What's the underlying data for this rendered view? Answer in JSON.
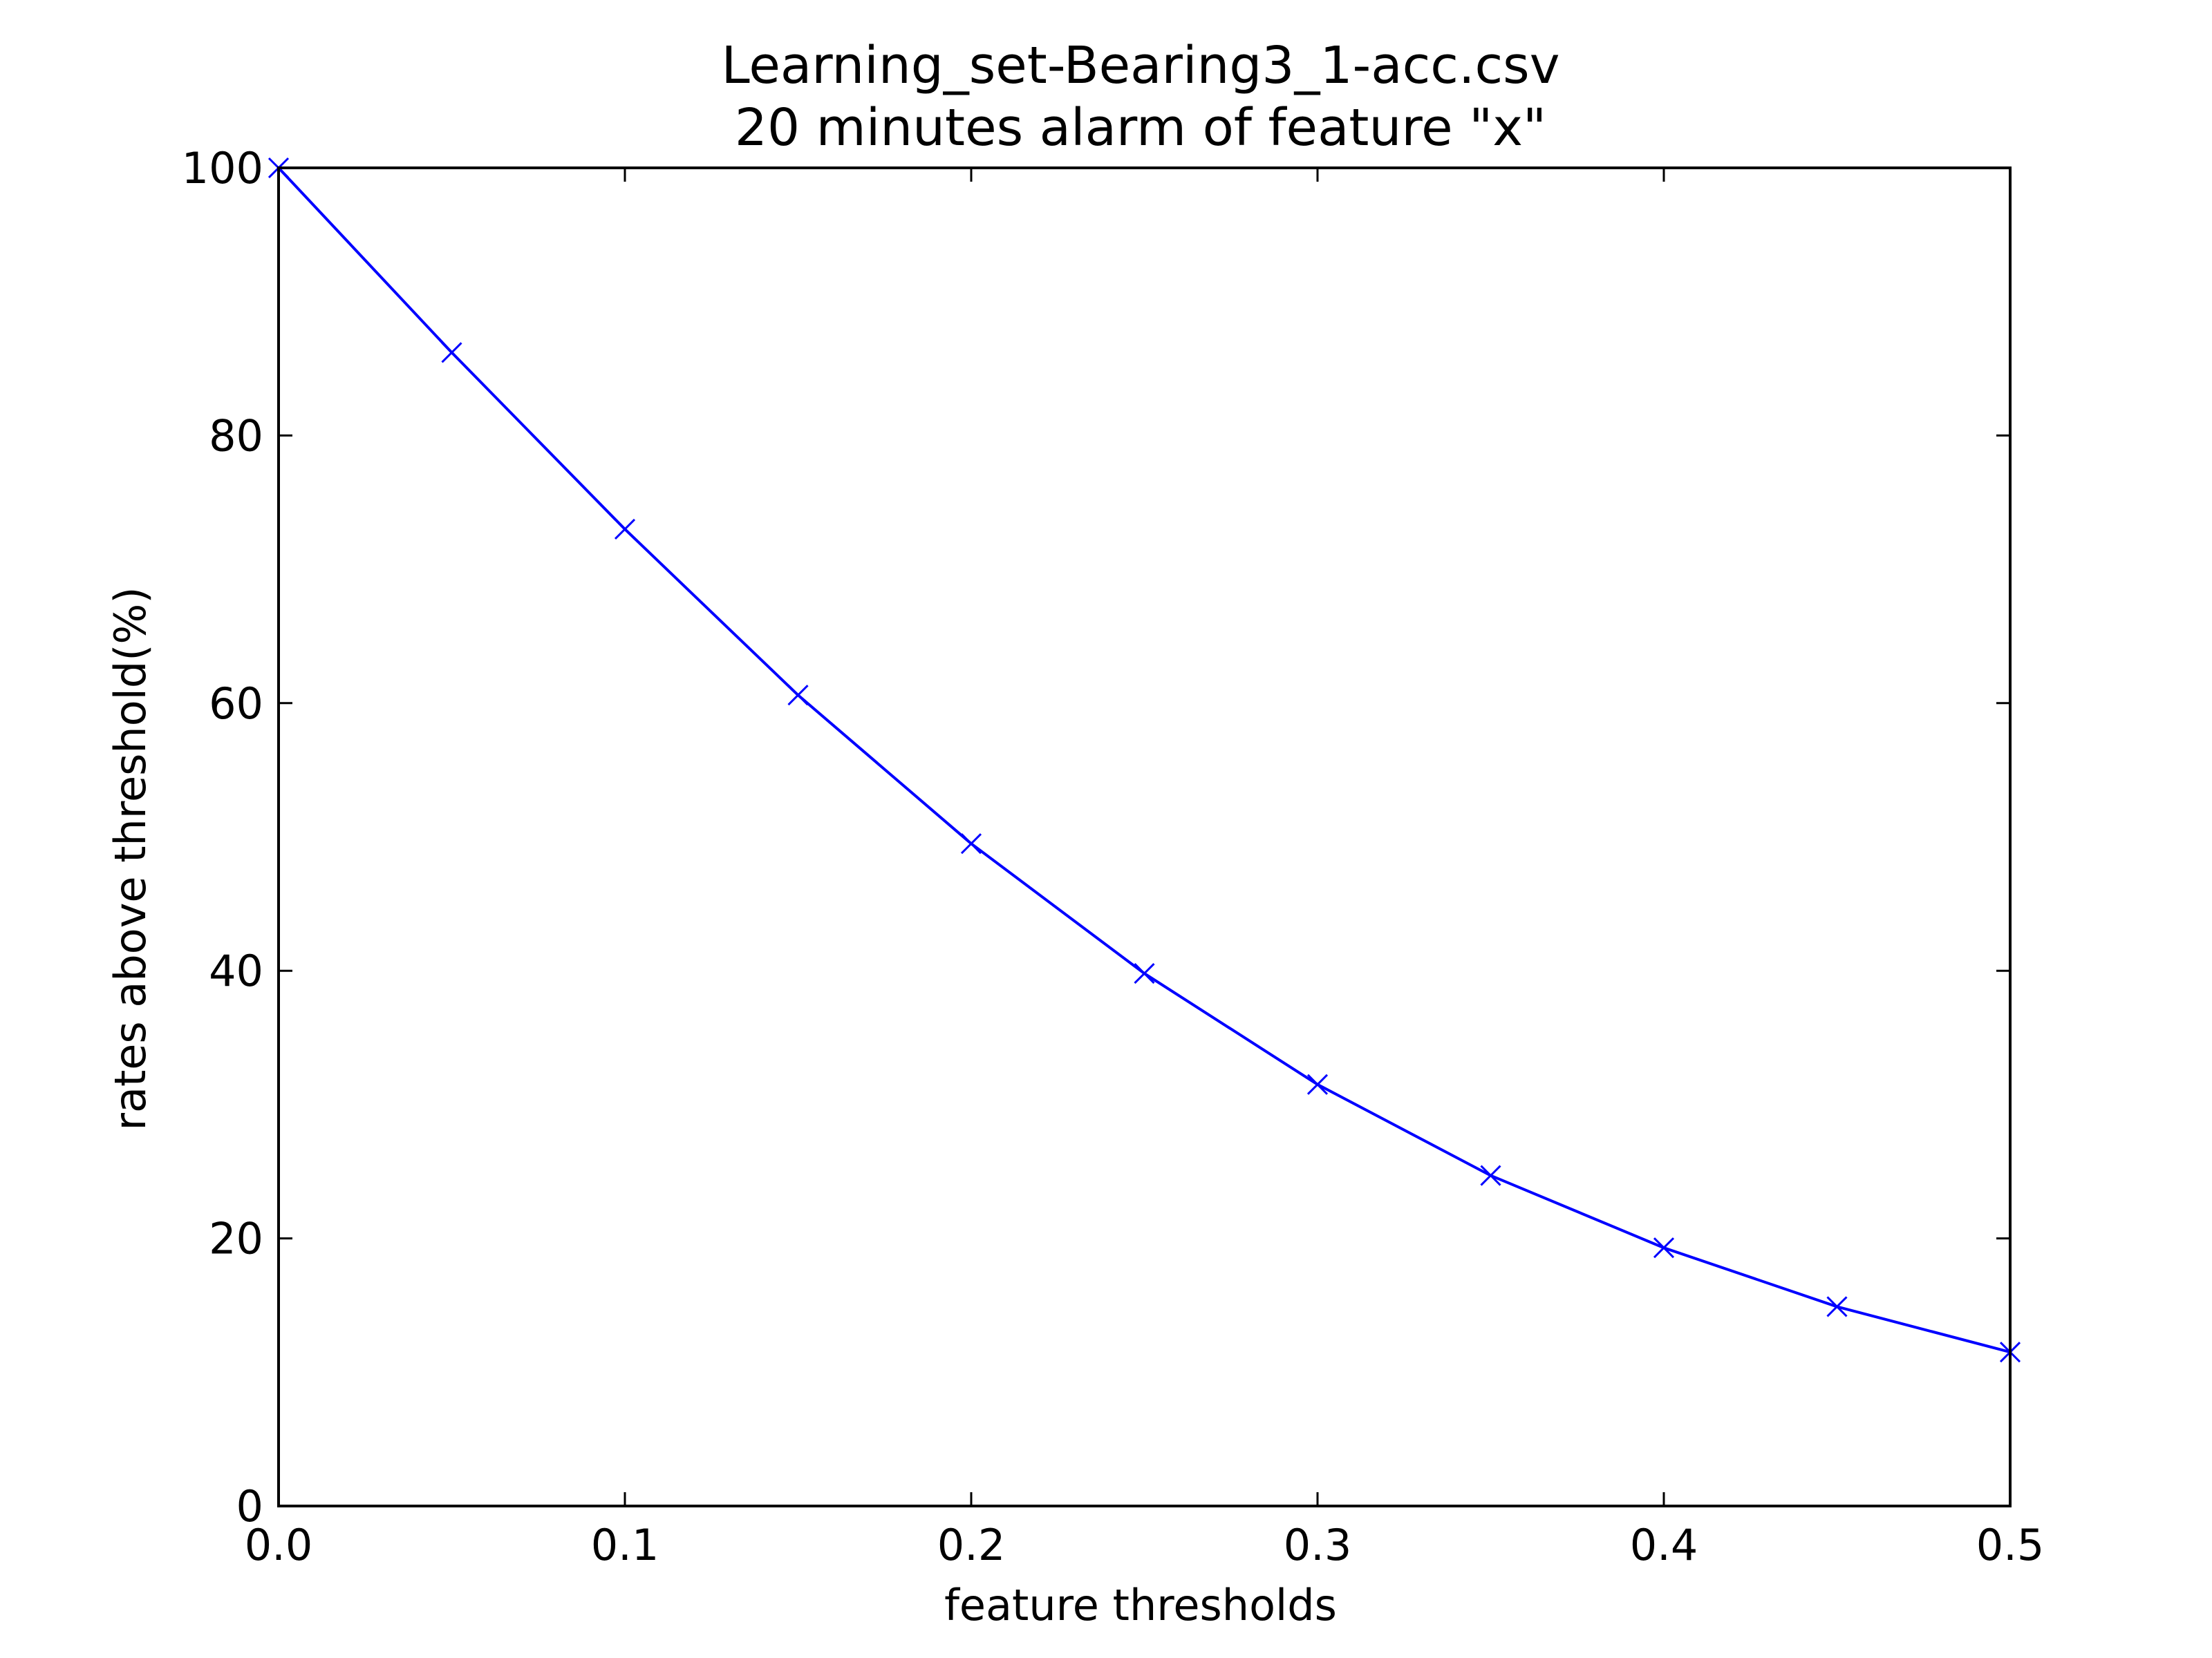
{
  "chart_data": {
    "type": "line",
    "title": "Learning_set-Bearing3_1-acc.csv",
    "subtitle": "20 minutes alarm of feature \"x\"",
    "xlabel": "feature thresholds",
    "ylabel": "rates above threshold(%)",
    "xlim": [
      0.0,
      0.5
    ],
    "ylim": [
      0,
      100
    ],
    "x_ticks": [
      "0.0",
      "0.1",
      "0.2",
      "0.3",
      "0.4",
      "0.5"
    ],
    "y_ticks": [
      "0",
      "20",
      "40",
      "60",
      "80",
      "100"
    ],
    "grid": false,
    "legend": false,
    "series": [
      {
        "color": "#0000ff",
        "marker": "x",
        "x": [
          0.0,
          0.05,
          0.1,
          0.15,
          0.2,
          0.25,
          0.3,
          0.35,
          0.4,
          0.45,
          0.5
        ],
        "y": [
          100,
          86.2,
          73.0,
          60.6,
          49.5,
          39.8,
          31.5,
          24.7,
          19.3,
          14.9,
          11.5
        ]
      }
    ]
  }
}
